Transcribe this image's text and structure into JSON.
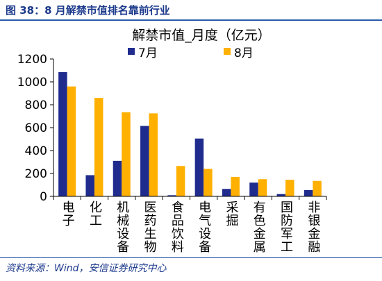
{
  "header": {
    "title": "图 38：8 月解禁市值排名靠前行业"
  },
  "chart_data": {
    "type": "bar",
    "title": "解禁市值_月度（亿元）",
    "categories": [
      "电子",
      "化工",
      "机械设备",
      "医药生物",
      "食品饮料",
      "电气设备",
      "采掘",
      "有色金属",
      "国防军工",
      "非银金融"
    ],
    "series": [
      {
        "name": "7月",
        "color": "#1F2C8E",
        "values": [
          1085,
          185,
          310,
          615,
          10,
          505,
          65,
          120,
          20,
          55
        ]
      },
      {
        "name": "8月",
        "color": "#FFB000",
        "values": [
          960,
          860,
          735,
          725,
          265,
          240,
          170,
          150,
          145,
          135
        ]
      }
    ],
    "ylim": [
      0,
      1200
    ],
    "yticks": [
      0,
      200,
      400,
      600,
      800,
      1000,
      1200
    ],
    "legend_position": "top",
    "grid": false
  },
  "footer": {
    "source": "资料来源：Wind，安信证券研究中心"
  }
}
